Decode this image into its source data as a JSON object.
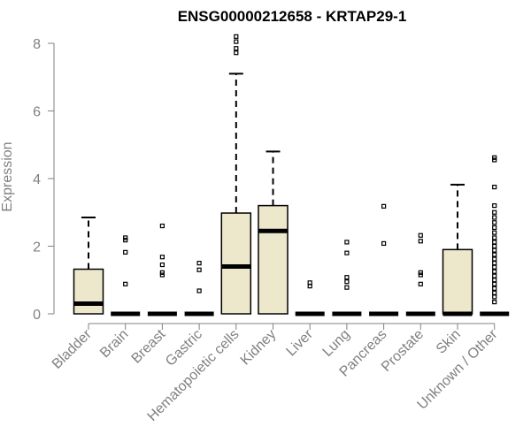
{
  "chart_data": {
    "type": "boxplot",
    "title": "ENSG00000212658 - KRTAP29-1",
    "xlabel": "",
    "ylabel": "Expression",
    "ylim": [
      0,
      8.3
    ],
    "yticks": [
      0,
      2,
      4,
      6,
      8
    ],
    "tick_labels": [
      "0",
      "2",
      "4",
      "6",
      "8"
    ],
    "box_fill": "#ede7cc",
    "categories": [
      "Bladder",
      "Brain",
      "Breast",
      "Gastric",
      "Hematopoietic cells",
      "Kidney",
      "Liver",
      "Lung",
      "Pancreas",
      "Prostate",
      "Skin",
      "Unknown / Other"
    ],
    "boxes": [
      {
        "q1": 0.0,
        "median": 0.3,
        "q3": 1.32,
        "whisker_low": 0.0,
        "whisker_high": 2.85,
        "outliers": []
      },
      {
        "q1": 0.0,
        "median": 0.0,
        "q3": 0.0,
        "whisker_low": 0.0,
        "whisker_high": 0.0,
        "outliers": [
          0.88,
          1.82,
          2.18,
          2.25
        ]
      },
      {
        "q1": 0.0,
        "median": 0.0,
        "q3": 0.0,
        "whisker_low": 0.0,
        "whisker_high": 0.0,
        "outliers": [
          1.15,
          1.22,
          1.45,
          1.68,
          2.6
        ]
      },
      {
        "q1": 0.0,
        "median": 0.0,
        "q3": 0.0,
        "whisker_low": 0.0,
        "whisker_high": 0.0,
        "outliers": [
          0.68,
          1.3,
          1.5
        ]
      },
      {
        "q1": 0.0,
        "median": 1.4,
        "q3": 2.98,
        "whisker_low": 0.0,
        "whisker_high": 7.1,
        "outliers": [
          7.72,
          7.85,
          8.05,
          8.2
        ]
      },
      {
        "q1": 0.0,
        "median": 2.45,
        "q3": 3.2,
        "whisker_low": 0.0,
        "whisker_high": 4.8,
        "outliers": []
      },
      {
        "q1": 0.0,
        "median": 0.0,
        "q3": 0.0,
        "whisker_low": 0.0,
        "whisker_high": 0.0,
        "outliers": [
          0.82,
          0.92
        ]
      },
      {
        "q1": 0.0,
        "median": 0.0,
        "q3": 0.0,
        "whisker_low": 0.0,
        "whisker_high": 0.0,
        "outliers": [
          0.78,
          0.95,
          1.08,
          1.8,
          2.12
        ]
      },
      {
        "q1": 0.0,
        "median": 0.0,
        "q3": 0.0,
        "whisker_low": 0.0,
        "whisker_high": 0.0,
        "outliers": [
          2.08,
          3.18
        ]
      },
      {
        "q1": 0.0,
        "median": 0.0,
        "q3": 0.0,
        "whisker_low": 0.0,
        "whisker_high": 0.0,
        "outliers": [
          0.88,
          1.15,
          1.22,
          2.15,
          2.32
        ]
      },
      {
        "q1": 0.0,
        "median": 0.0,
        "q3": 1.9,
        "whisker_low": 0.0,
        "whisker_high": 3.82,
        "outliers": []
      },
      {
        "q1": 0.0,
        "median": 0.0,
        "q3": 0.0,
        "whisker_low": 0.0,
        "whisker_high": 0.0,
        "outliers": [
          0.35,
          0.5,
          0.62,
          0.75,
          0.88,
          1.0,
          1.12,
          1.25,
          1.38,
          1.5,
          1.62,
          1.75,
          1.88,
          2.0,
          2.12,
          2.25,
          2.4,
          2.55,
          2.7,
          2.85,
          3.0,
          3.2,
          3.75,
          4.55,
          4.62
        ]
      }
    ]
  }
}
